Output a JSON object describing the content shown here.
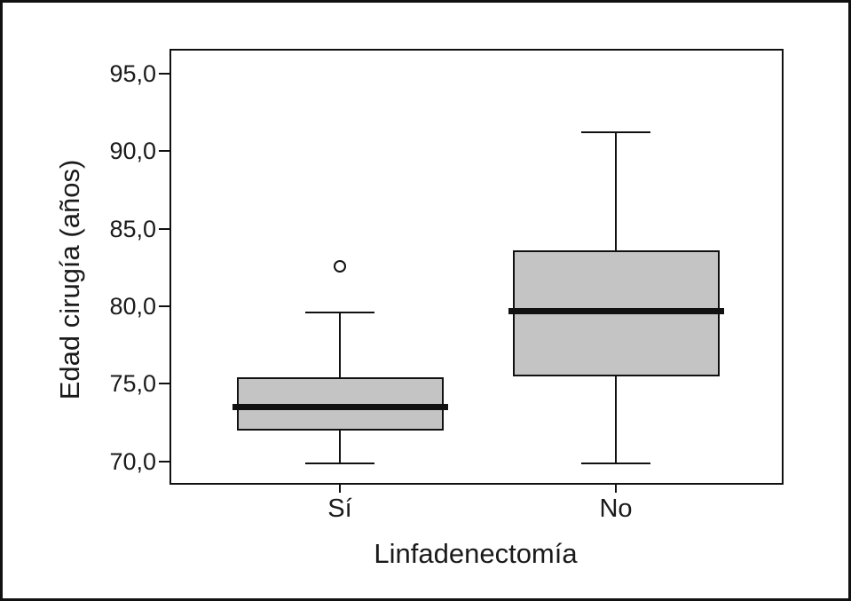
{
  "chart_data": {
    "type": "box",
    "title": "",
    "xlabel": "Linfadenectomía",
    "ylabel": "Edad cirugía (años)",
    "categories": [
      "Sí",
      "No"
    ],
    "y_axis": {
      "tick_values": [
        70,
        75,
        80,
        85,
        90,
        95
      ],
      "tick_labels": [
        "70,0",
        "75,0",
        "80,0",
        "85,0",
        "90,0",
        "95,0"
      ],
      "min": 68.5,
      "max": 96.6,
      "decimal_style": "comma"
    },
    "series": [
      {
        "category": "Sí",
        "whisker_low": 69.9,
        "q1": 72.0,
        "median": 73.5,
        "q3": 75.4,
        "whisker_high": 79.6,
        "outliers": [
          82.6
        ]
      },
      {
        "category": "No",
        "whisker_low": 69.9,
        "q1": 75.5,
        "median": 79.7,
        "q3": 83.6,
        "whisker_high": 91.2,
        "outliers": []
      }
    ],
    "legend": null,
    "grid": false,
    "colors": {
      "box_fill": "#c4c4c4",
      "line": "#111111",
      "background": "#ffffff"
    }
  }
}
